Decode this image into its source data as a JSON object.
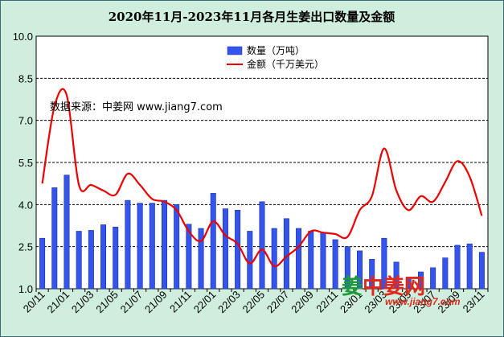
{
  "chart_data": {
    "type": "bar",
    "title": "2020年11月-2023年11月各月生姜出口数量及金额",
    "xlabel": "",
    "ylabel": "",
    "ylim": [
      1.0,
      10.0
    ],
    "yticks": [
      "1.0",
      "2.5",
      "4.0",
      "5.5",
      "7.0",
      "8.5",
      "10.0"
    ],
    "grid": true,
    "legend_position": "top-center",
    "xtick_labels": [
      "20/11",
      "21/01",
      "21/03",
      "21/05",
      "21/07",
      "21/09",
      "21/11",
      "22/01",
      "22/03",
      "22/05",
      "22/07",
      "22/09",
      "22/11",
      "23/01",
      "23/03",
      "23/05",
      "23/07",
      "23/09",
      "23/11"
    ],
    "categories": [
      "20/11",
      "20/12",
      "21/01",
      "21/02",
      "21/03",
      "21/04",
      "21/05",
      "21/06",
      "21/07",
      "21/08",
      "21/09",
      "21/10",
      "21/11",
      "21/12",
      "22/01",
      "22/02",
      "22/03",
      "22/04",
      "22/05",
      "22/06",
      "22/07",
      "22/08",
      "22/09",
      "22/10",
      "22/11",
      "22/12",
      "23/01",
      "23/02",
      "23/03",
      "23/04",
      "23/05",
      "23/06",
      "23/07",
      "23/08",
      "23/09",
      "23/10",
      "23/11"
    ],
    "series": [
      {
        "name": "数量（万吨）",
        "type": "bar",
        "color": "#3355ee",
        "values": [
          2.8,
          4.6,
          5.05,
          3.05,
          3.08,
          3.28,
          3.2,
          4.15,
          4.05,
          4.05,
          4.15,
          4.0,
          3.3,
          3.15,
          4.4,
          3.85,
          3.8,
          3.05,
          4.1,
          3.15,
          3.5,
          3.15,
          3.05,
          3.0,
          2.75,
          2.5,
          2.35,
          2.05,
          2.8,
          1.95,
          1.4,
          1.6,
          1.75,
          2.1,
          2.55,
          2.6,
          2.3
        ]
      },
      {
        "name": "金额（千万美元）",
        "type": "line",
        "color": "#ee0000",
        "values": [
          4.75,
          7.5,
          7.9,
          4.7,
          4.7,
          4.5,
          4.35,
          5.1,
          4.7,
          4.2,
          4.1,
          3.8,
          3.05,
          2.7,
          3.4,
          2.9,
          2.6,
          1.9,
          2.4,
          1.8,
          2.15,
          2.5,
          3.05,
          3.0,
          2.95,
          2.85,
          3.8,
          4.3,
          6.0,
          4.5,
          3.8,
          4.3,
          4.1,
          4.8,
          5.55,
          5.0,
          3.6
        ]
      }
    ],
    "annotations": [
      "数据来源：中姜网 www.jiang7.com"
    ]
  },
  "watermark": {
    "logo_text": "姜中姜网",
    "url": "www.jiang7.com",
    "colors": {
      "green": "#1f9a3a",
      "red": "#e0291b"
    }
  },
  "colors": {
    "background": "#cfeedd",
    "plot_background": "#ffffff"
  }
}
